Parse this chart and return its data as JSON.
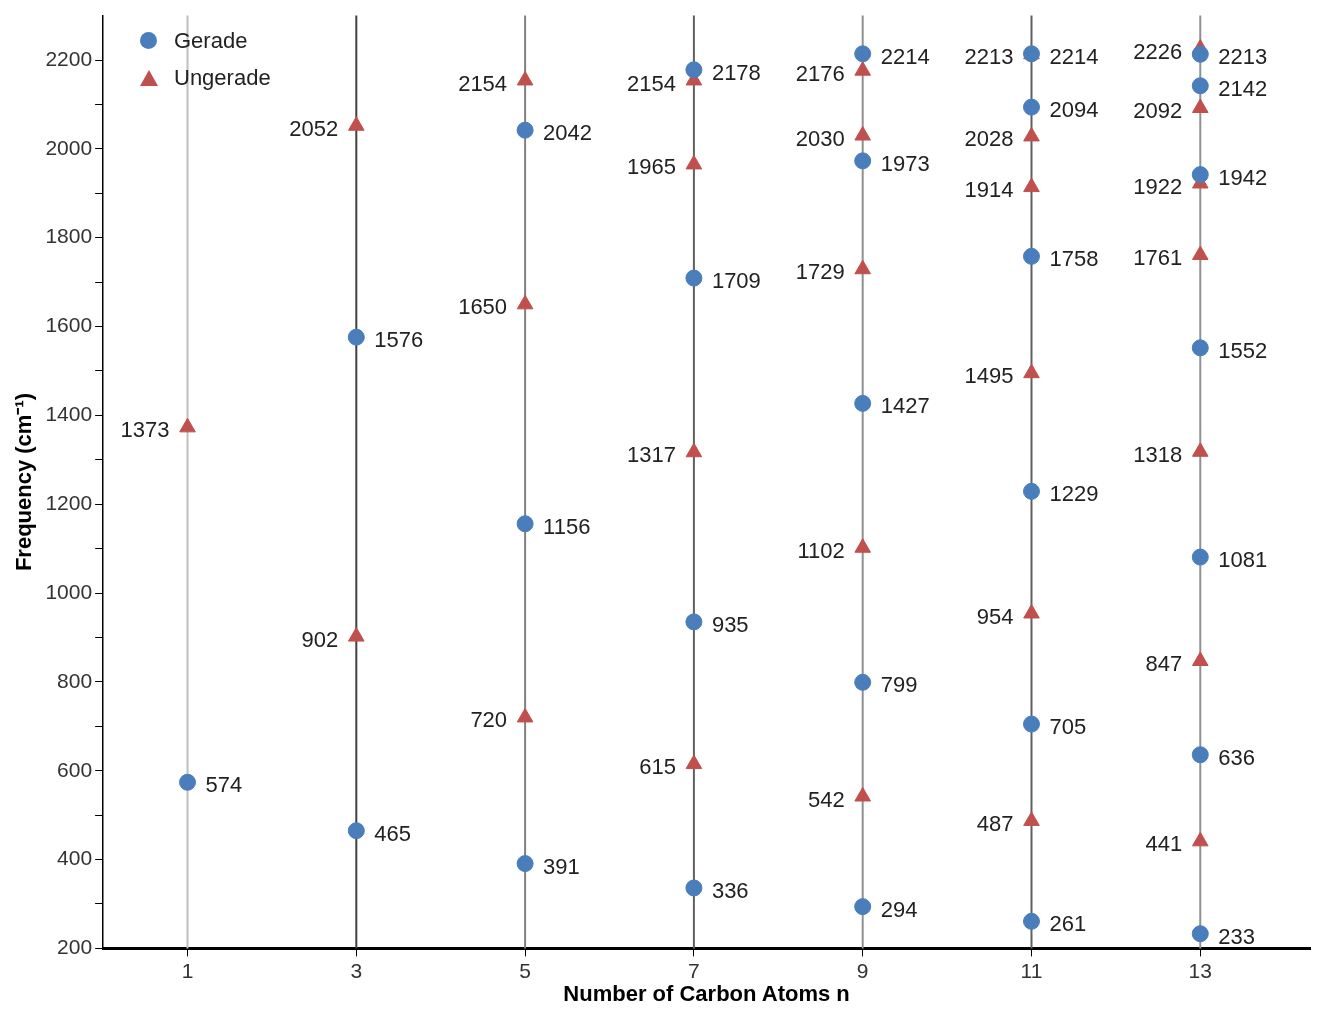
{
  "chart_data": {
    "type": "scatter",
    "xlabel": "Number of Carbon Atoms n",
    "ylabel": "Frequency (cm⁻¹)",
    "xlim": [
      0,
      14.3
    ],
    "xticks": [
      1,
      3,
      5,
      7,
      9,
      11,
      13
    ],
    "ylim": [
      200,
      2300
    ],
    "yticks": [
      200,
      {
        "value": 300,
        "label": null
      },
      400,
      {
        "value": 500,
        "label": null
      },
      600,
      {
        "value": 700,
        "label": null
      },
      800,
      {
        "value": 900,
        "label": null
      },
      1000,
      {
        "value": 1100,
        "label": null
      },
      1200,
      {
        "value": 1300,
        "label": null
      },
      1400,
      {
        "value": 1500,
        "label": null
      },
      1600,
      {
        "value": 1700,
        "label": null
      },
      1800,
      {
        "value": 1900,
        "label": null
      },
      2000,
      {
        "value": 2100,
        "label": null
      },
      2200
    ],
    "grid": false,
    "legend": "top left",
    "data_labels": true,
    "ref_lines": [
      {
        "axis": "x",
        "value": 1,
        "color": "#bfbfbf"
      },
      {
        "axis": "x",
        "value": 3,
        "color": "#404040"
      },
      {
        "axis": "x",
        "value": 5,
        "color": "#808080"
      },
      {
        "axis": "x",
        "value": 7,
        "color": "#606060"
      },
      {
        "axis": "x",
        "value": 9,
        "color": "#909090"
      },
      {
        "axis": "x",
        "value": 11,
        "color": "#606060"
      },
      {
        "axis": "x",
        "value": 13,
        "color": "#909090"
      }
    ],
    "series": [
      {
        "name": "Gerade",
        "color": "#4a7ebb",
        "marker": "circle",
        "x": [
          1,
          3,
          3,
          5,
          5,
          5,
          7,
          7,
          7,
          7,
          9,
          9,
          9,
          9,
          9,
          11,
          11,
          11,
          11,
          11,
          11,
          13,
          13,
          13,
          13,
          13,
          13,
          13
        ],
        "values": [
          574,
          465,
          1576,
          391,
          1156,
          2042,
          336,
          935,
          1709,
          2178,
          294,
          799,
          1427,
          1973,
          2214,
          261,
          705,
          1229,
          1758,
          2094,
          2214,
          233,
          636,
          1081,
          1552,
          1942,
          2142,
          2213
        ]
      },
      {
        "name": "Ungerade",
        "color": "#c0504d",
        "marker": "triangle",
        "x": [
          1,
          3,
          3,
          5,
          5,
          5,
          7,
          7,
          7,
          7,
          9,
          9,
          9,
          9,
          9,
          11,
          11,
          11,
          11,
          11,
          11,
          13,
          13,
          13,
          13,
          13,
          13,
          13
        ],
        "values": [
          1373,
          902,
          2052,
          720,
          1650,
          2154,
          615,
          1317,
          1965,
          2154,
          542,
          1102,
          1729,
          2030,
          2176,
          487,
          954,
          1495,
          1914,
          2028,
          2213,
          441,
          847,
          1318,
          1761,
          1922,
          2092,
          2226
        ]
      }
    ]
  }
}
